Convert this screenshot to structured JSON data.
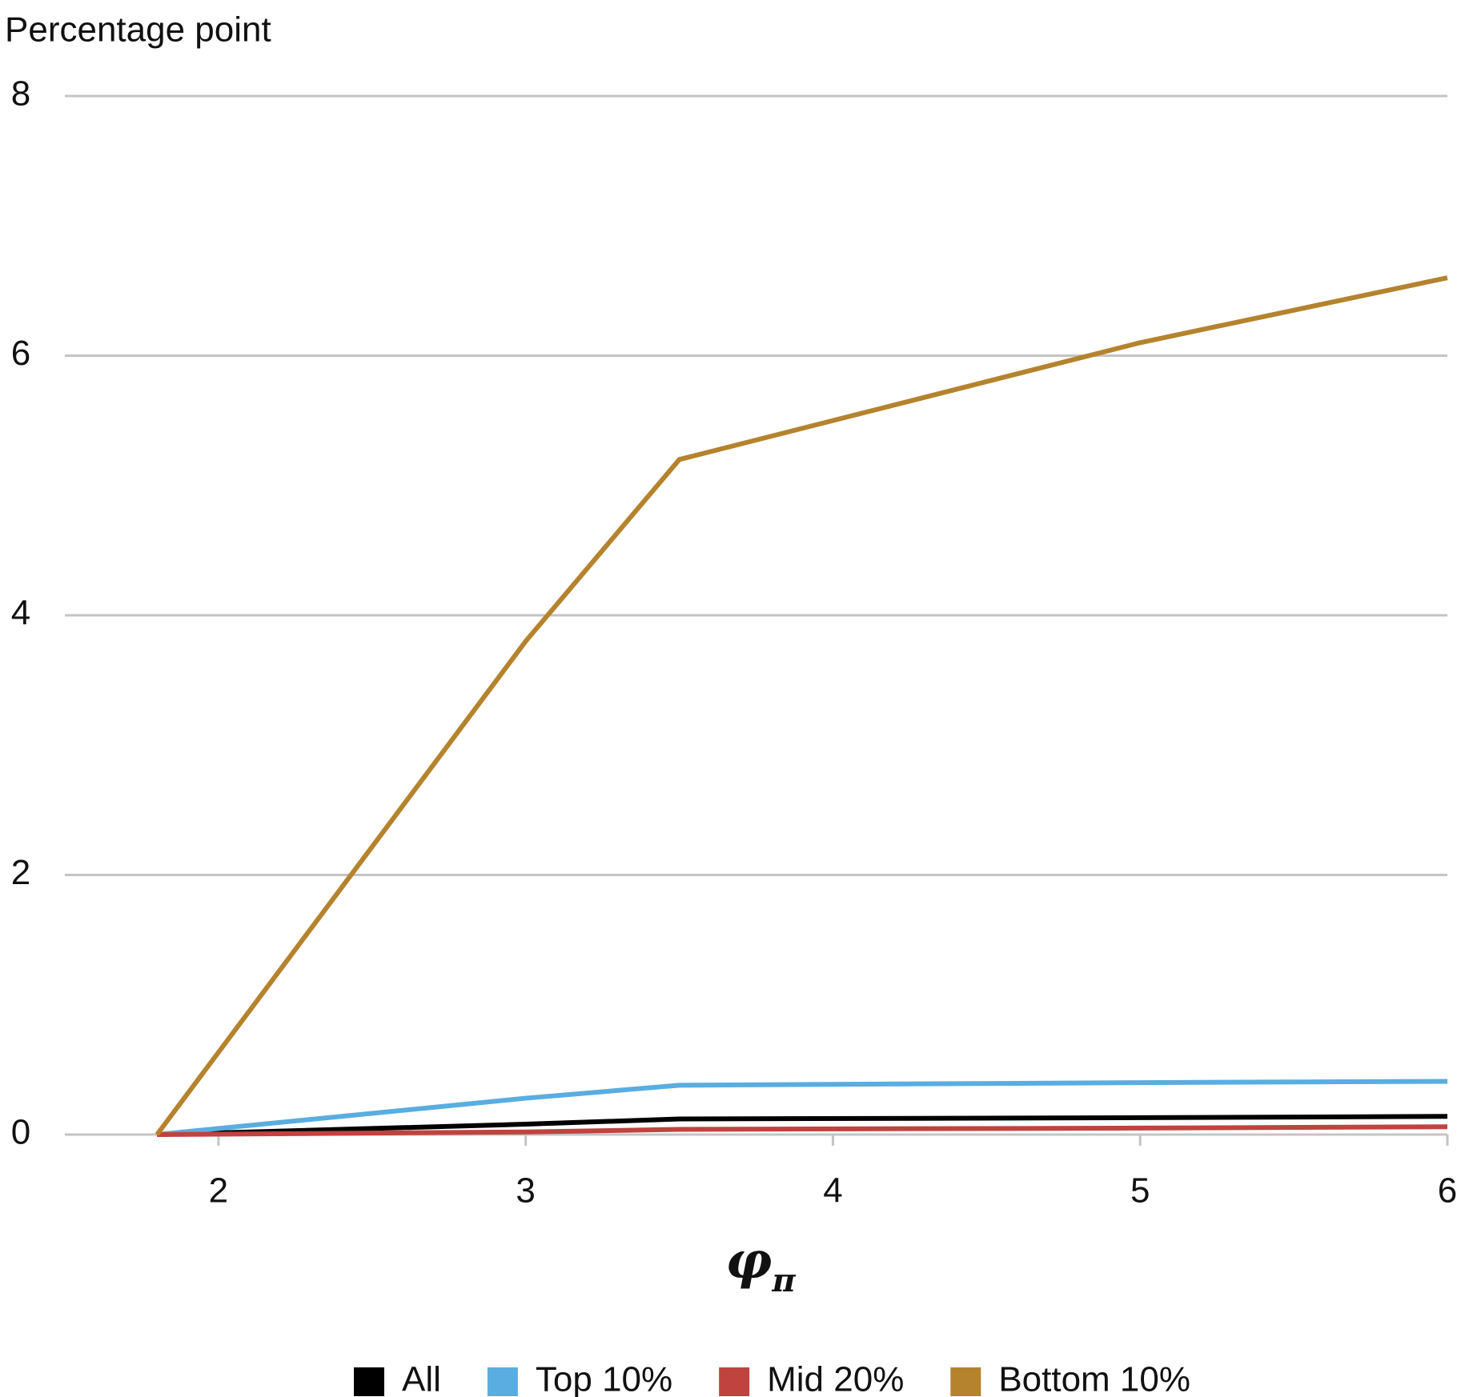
{
  "chart_data": {
    "type": "line",
    "y_label": "Percentage point",
    "x_label": {
      "symbol": "φ",
      "subscript": "π"
    },
    "x": [
      1.8,
      3,
      3.5,
      5,
      6
    ],
    "series": [
      {
        "name": "All",
        "color": "#000000",
        "values": [
          0,
          0.08,
          0.12,
          0.13,
          0.14
        ]
      },
      {
        "name": "Top 10%",
        "color": "#5aade0",
        "values": [
          0,
          0.28,
          0.38,
          0.4,
          0.41
        ]
      },
      {
        "name": "Mid 20%",
        "color": "#c0433f",
        "values": [
          0,
          0.02,
          0.04,
          0.05,
          0.06
        ]
      },
      {
        "name": "Bottom 10%",
        "color": "#b5832e",
        "values": [
          0,
          3.8,
          5.2,
          6.1,
          6.6
        ]
      }
    ],
    "xlim": [
      1.5,
      6
    ],
    "xticks": [
      2,
      3,
      4,
      5,
      6
    ],
    "ylim": [
      0,
      8
    ],
    "yticks": [
      0,
      2,
      4,
      6,
      8
    ],
    "grid": true,
    "legend": "bottom"
  }
}
